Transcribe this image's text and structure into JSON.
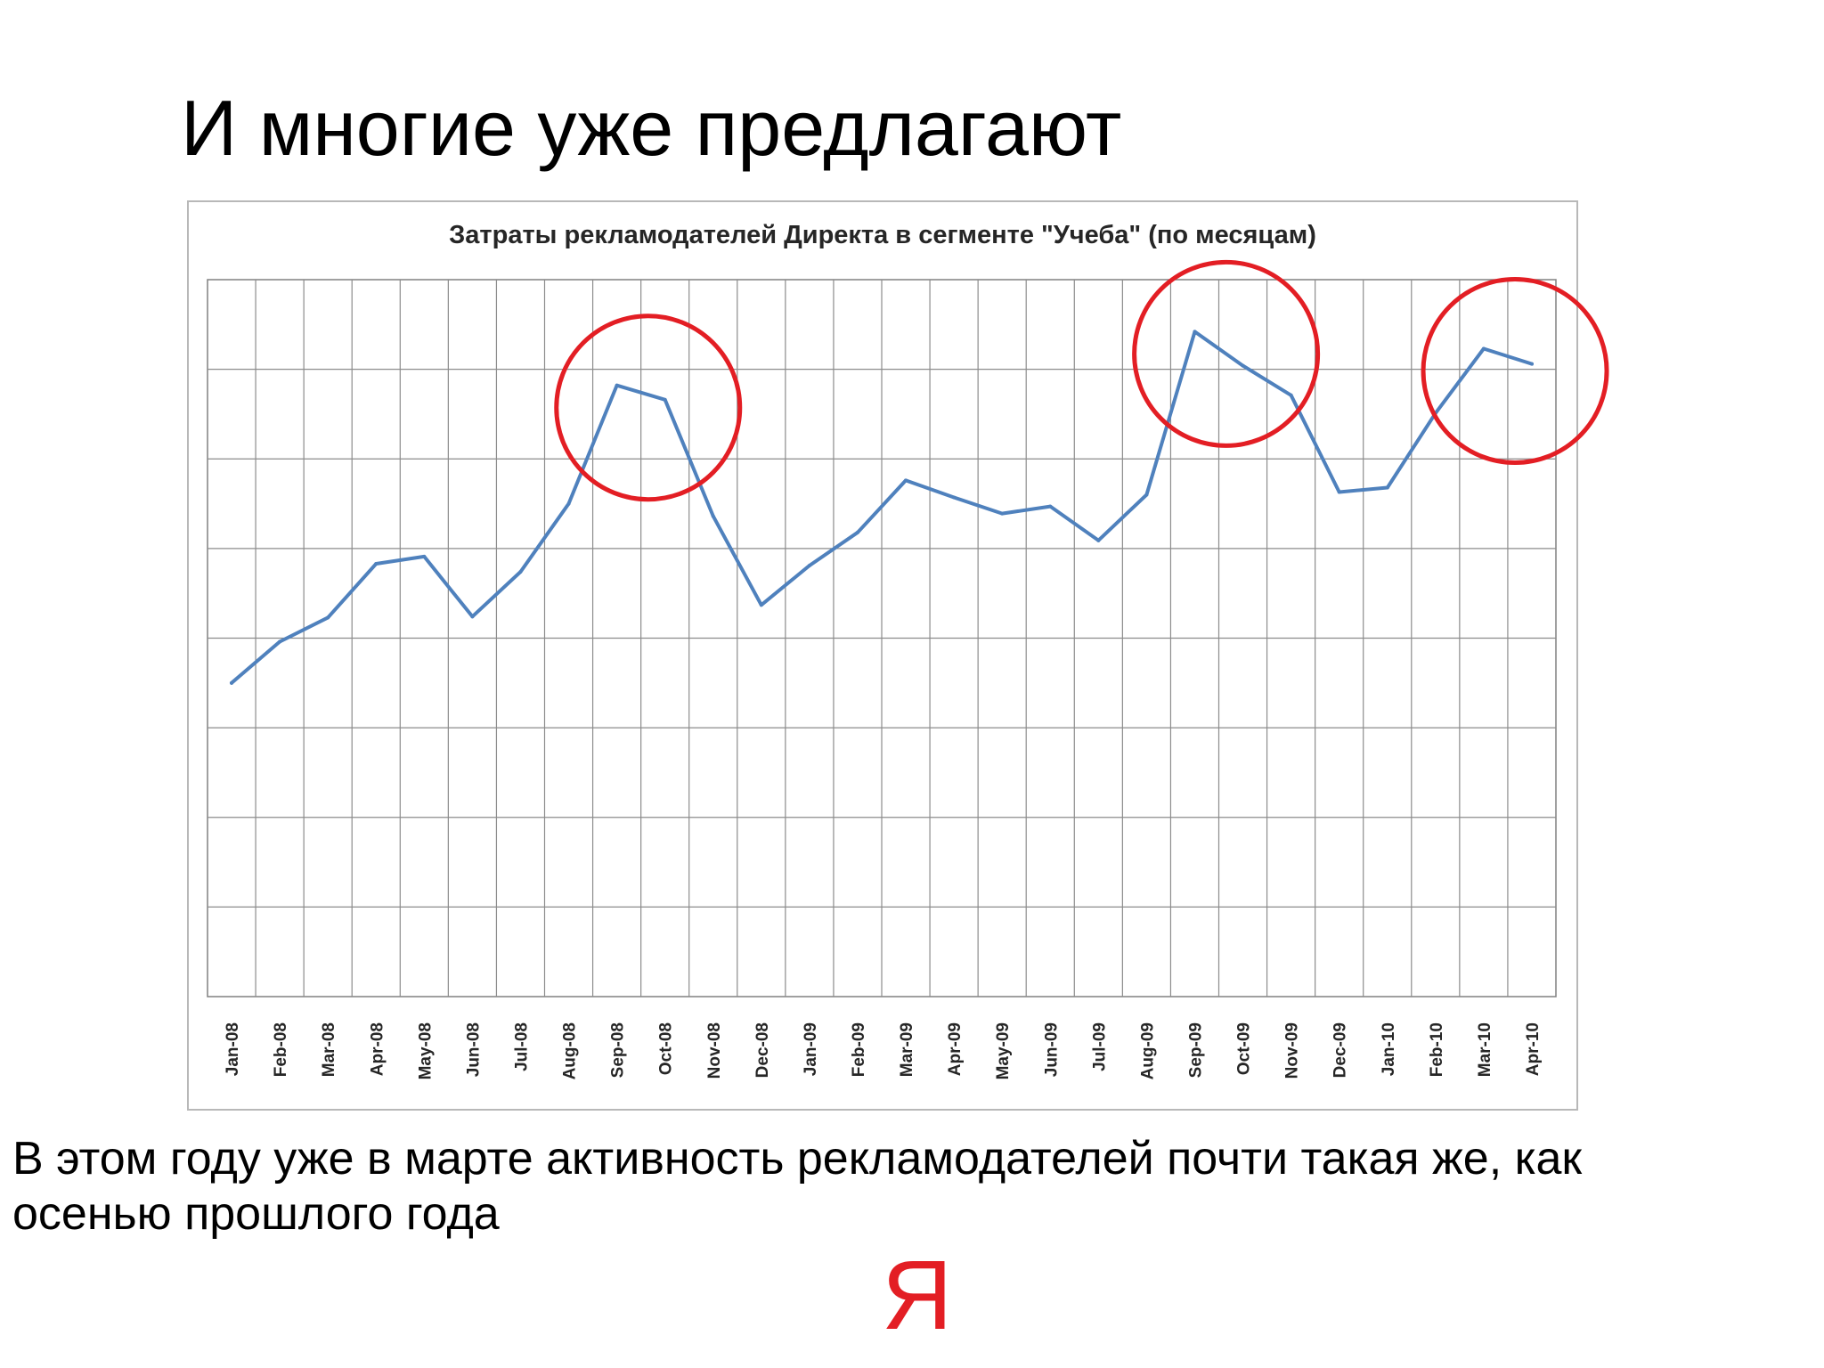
{
  "slide": {
    "title": "И многие уже предлагают",
    "caption": "В этом году уже в марте активность рекламодателей почти такая же, как осенью прошлого года",
    "logo": "Я"
  },
  "chart_data": {
    "type": "line",
    "title": "Затраты рекламодателей Директа в сегменте \"Учеба\" (по месяцам)",
    "xlabel": "",
    "ylabel": "",
    "categories": [
      "Jan-08",
      "Feb-08",
      "Mar-08",
      "Apr-08",
      "May-08",
      "Jun-08",
      "Jul-08",
      "Aug-08",
      "Sep-08",
      "Oct-08",
      "Nov-08",
      "Dec-08",
      "Jan-09",
      "Feb-09",
      "Mar-09",
      "Apr-09",
      "May-09",
      "Jun-09",
      "Jul-09",
      "Aug-09",
      "Sep-09",
      "Oct-09",
      "Nov-09",
      "Dec-09",
      "Jan-10",
      "Feb-10",
      "Mar-10",
      "Apr-10"
    ],
    "series": [
      {
        "values": [
          2.5,
          2.96,
          3.23,
          3.83,
          3.91,
          3.24,
          3.74,
          4.5,
          5.82,
          5.66,
          4.36,
          3.37,
          3.81,
          4.18,
          4.76,
          4.57,
          4.39,
          4.47,
          4.09,
          4.6,
          6.42,
          6.04,
          5.71,
          4.63,
          4.68,
          5.51,
          6.23,
          6.06
        ]
      }
    ],
    "ylim": [
      -1,
      7
    ],
    "y_tick_labels_shown": false,
    "grid": true,
    "legend": "none",
    "line_color": "#4f81bd",
    "highlight_color": "#e31e24",
    "highlighted_categories": [
      "Sep-08",
      "Sep-09",
      "Mar-10"
    ]
  }
}
